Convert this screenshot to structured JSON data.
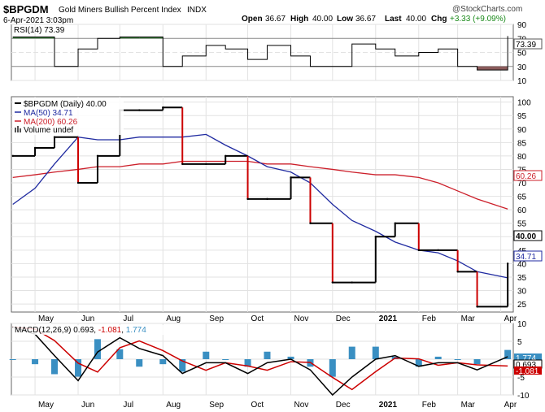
{
  "header": {
    "symbol": "$BPGDM",
    "name": "Gold Miners Bullish Percent Index",
    "exchange": "INDX",
    "timestamp": "6-Apr-2021 3:03pm",
    "watermark": "@StockCharts.com",
    "open_label": "Open",
    "open": "36.67",
    "high_label": "High",
    "high": "40.00",
    "low_label": "Low",
    "low": "36.67",
    "last_label": "Last",
    "last": "40.00",
    "chg_label": "Chg",
    "chg": "+3.33 (+9.09%)"
  },
  "rsi_panel": {
    "legend": "RSI(14) 73.39",
    "last_tag": "73.39",
    "ticks": [
      "90",
      "70",
      "50",
      "30",
      "10"
    ]
  },
  "price_panel": {
    "legend_price": "$BPGDM (Daily) 40.00",
    "legend_ma50": "MA(50) 34.71",
    "legend_ma200": "MA(200) 60.26",
    "legend_volume": "Volume undef",
    "tag_price": "40.00",
    "tag_ma50": "34.71",
    "tag_ma200": "60.26",
    "ticks": [
      "100",
      "95",
      "90",
      "85",
      "80",
      "75",
      "70",
      "65",
      "60",
      "55",
      "50",
      "45",
      "40",
      "35",
      "30",
      "25"
    ]
  },
  "macd_panel": {
    "legend_prefix": "MACD(12,26,9)",
    "legend_macd": "0.693",
    "legend_signal": "-1.081",
    "legend_hist": "1.774",
    "tag_hist": "1.774",
    "tag_macd": "0.693",
    "tag_signal": "-1.081",
    "ticks": [
      "10",
      "5",
      "0",
      "-5",
      "-10"
    ]
  },
  "x_axis": {
    "labels": [
      "May",
      "Jun",
      "Jul",
      "Aug",
      "Sep",
      "Oct",
      "Nov",
      "Dec",
      "2021",
      "Feb",
      "Mar",
      "Apr"
    ]
  },
  "colors": {
    "price": "#000000",
    "price_decline": "#cc0000",
    "ma50": "#1f2aa0",
    "ma200": "#cc1f2a",
    "rsi_fill_high": "#3a7d3a",
    "rsi_fill_low": "#8a5a5a",
    "histogram": "#3a8fc2",
    "signal": "#cc0000"
  },
  "chart_data": {
    "type": "line",
    "x": [
      "2020-04-15",
      "2020-05-01",
      "2020-05-15",
      "2020-06-01",
      "2020-06-15",
      "2020-07-01",
      "2020-07-15",
      "2020-08-01",
      "2020-08-15",
      "2020-09-01",
      "2020-09-15",
      "2020-10-01",
      "2020-10-15",
      "2020-11-01",
      "2020-11-15",
      "2020-12-01",
      "2020-12-15",
      "2021-01-01",
      "2021-01-15",
      "2021-02-01",
      "2021-02-15",
      "2021-03-01",
      "2021-03-15",
      "2021-04-06"
    ],
    "series": [
      {
        "name": "$BPGDM",
        "values": [
          80,
          83,
          87,
          70,
          80,
          97,
          97,
          98,
          77,
          77,
          80,
          64,
          64,
          72,
          55,
          33,
          33,
          50,
          55,
          45,
          45,
          37,
          24,
          40
        ]
      },
      {
        "name": "MA(50)",
        "values": [
          62,
          68,
          77,
          87,
          86,
          86,
          87,
          87,
          87,
          88,
          84,
          80,
          76,
          74,
          70,
          62,
          56,
          52,
          48,
          45,
          44,
          41,
          37,
          34.71
        ]
      },
      {
        "name": "MA(200)",
        "values": [
          72,
          73,
          74,
          75,
          76,
          76,
          77,
          77,
          78,
          78,
          78,
          78,
          77,
          77,
          76,
          75,
          74,
          73,
          73,
          72,
          70,
          67,
          64,
          60.26
        ]
      }
    ],
    "panels": [
      {
        "name": "RSI(14)",
        "values": [
          72,
          72,
          30,
          55,
          70,
          72,
          72,
          30,
          45,
          60,
          55,
          40,
          60,
          45,
          30,
          30,
          62,
          55,
          45,
          50,
          55,
          30,
          25,
          73.39
        ],
        "ylim": [
          10,
          90
        ]
      },
      {
        "name": "MACD(12,26,9)",
        "values": [
          9,
          7,
          1,
          -6,
          2,
          6,
          3,
          1,
          -4,
          -1,
          -1,
          -4,
          -1,
          0,
          -3,
          -10,
          -5,
          0,
          1,
          -2,
          -1,
          -1,
          -3,
          0.693
        ],
        "ylim": [
          -10,
          10
        ]
      }
    ],
    "ylim": [
      22,
      102
    ],
    "ylabel": "",
    "xlabel": ""
  }
}
